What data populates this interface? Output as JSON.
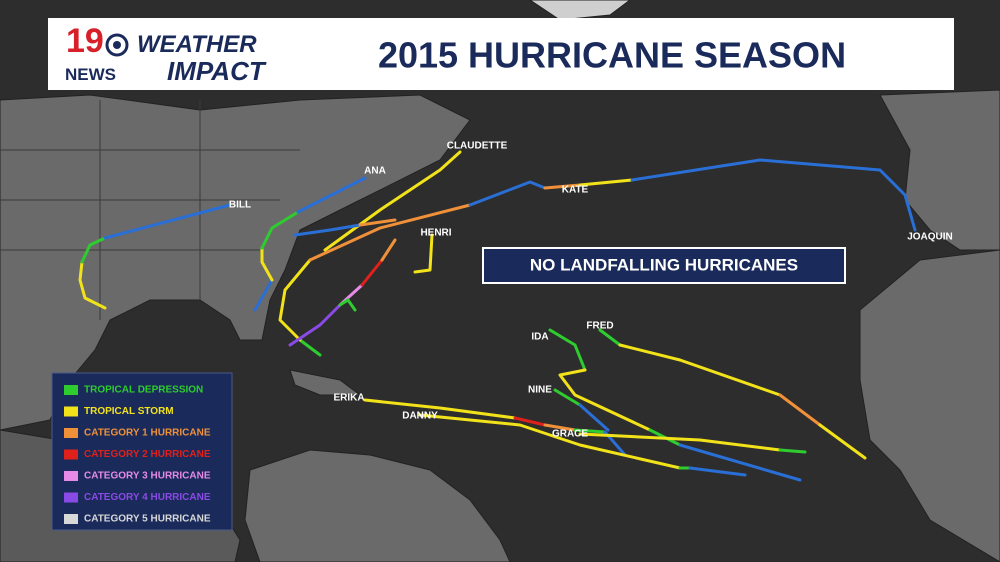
{
  "header": {
    "logo_number": "19",
    "logo_station": "NEWS",
    "logo_weather": "WEATHER",
    "logo_impact": "IMPACT",
    "title": "2015 HURRICANE SEASON"
  },
  "banner": "NO LANDFALLING HURRICANES",
  "storm_labels": [
    "CLAUDETTE",
    "ANA",
    "BILL",
    "KATE",
    "HENRI",
    "JOAQUIN",
    "FRED",
    "IDA",
    "NINE",
    "ERIKA",
    "DANNY",
    "GRACE"
  ],
  "legend": [
    {
      "label": "TROPICAL DEPRESSION",
      "color": "#2ecc2e"
    },
    {
      "label": "TROPICAL STORM",
      "color": "#f2e21a"
    },
    {
      "label": "CATEGORY 1 HURRICANE",
      "color": "#f0913a"
    },
    {
      "label": "CATEGORY 2 HURRICANE",
      "color": "#e0201a"
    },
    {
      "label": "CATEGORY 3 HURRICANE",
      "color": "#e68ae6"
    },
    {
      "label": "CATEGORY 4 HURRICANE",
      "color": "#8a4ae6"
    },
    {
      "label": "CATEGORY 5 HURRICANE",
      "color": "#d8d8d8"
    }
  ]
}
